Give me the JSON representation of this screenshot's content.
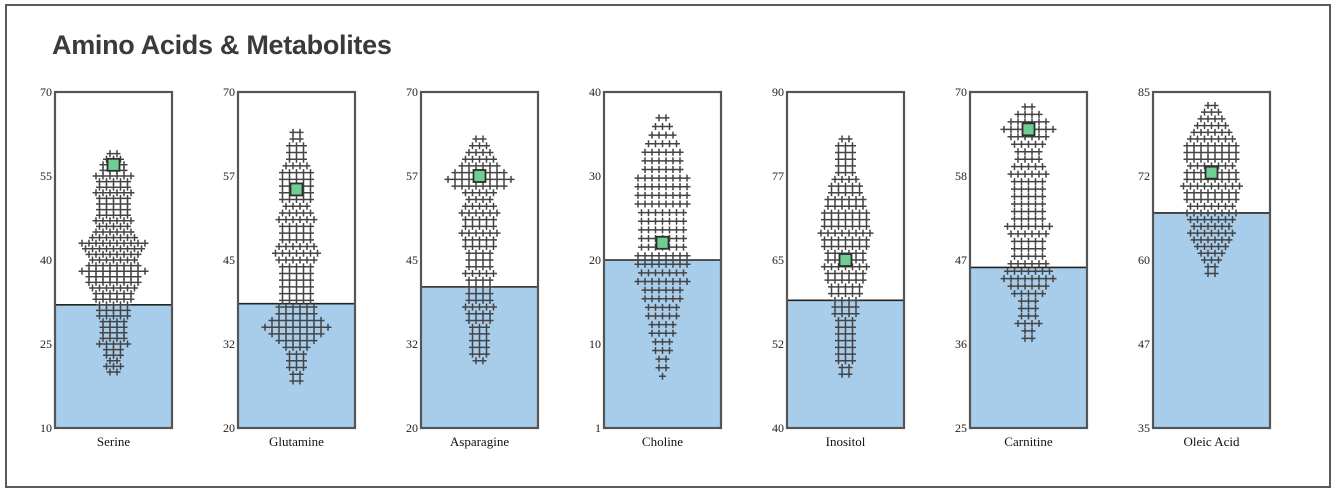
{
  "page": {
    "title": "Amino Acids & Metabolites"
  },
  "colors": {
    "fill": "#a8cdea",
    "frame": "#555555",
    "point": "#444444",
    "marker": "#6fcf93",
    "marker_border": "#2e2e2e",
    "title": "#3a3a3a"
  },
  "chart_data": [
    {
      "type": "scatter",
      "title": "Serine",
      "ylim": [
        10,
        70
      ],
      "yticks": [
        "10",
        "25",
        "40",
        "55",
        "70"
      ],
      "fill_level": 32,
      "marker": 57,
      "distribution": [
        [
          59,
          2
        ],
        [
          58,
          3
        ],
        [
          57,
          4
        ],
        [
          56,
          4
        ],
        [
          55,
          6
        ],
        [
          54,
          5
        ],
        [
          53,
          5
        ],
        [
          52,
          6
        ],
        [
          51,
          5
        ],
        [
          50,
          5
        ],
        [
          49,
          5
        ],
        [
          48,
          5
        ],
        [
          47,
          6
        ],
        [
          46,
          5
        ],
        [
          45,
          6
        ],
        [
          44,
          7
        ],
        [
          43,
          10
        ],
        [
          42,
          9
        ],
        [
          41,
          8
        ],
        [
          40,
          7
        ],
        [
          39,
          8
        ],
        [
          38,
          10
        ],
        [
          37,
          8
        ],
        [
          36,
          8
        ],
        [
          35,
          7
        ],
        [
          34,
          6
        ],
        [
          33,
          6
        ],
        [
          32,
          5
        ],
        [
          31,
          5
        ],
        [
          30,
          5
        ],
        [
          29,
          4
        ],
        [
          28,
          4
        ],
        [
          27,
          4
        ],
        [
          26,
          4
        ],
        [
          25,
          5
        ],
        [
          24,
          3
        ],
        [
          23,
          3
        ],
        [
          22,
          2
        ],
        [
          21,
          3
        ],
        [
          20,
          2
        ]
      ]
    },
    {
      "type": "scatter",
      "title": "Glutamine",
      "ylim": [
        20,
        70
      ],
      "yticks": [
        "20",
        "32",
        "45",
        "57",
        "70"
      ],
      "fill_level": 38.5,
      "marker": 55.5,
      "distribution": [
        [
          64,
          2
        ],
        [
          63,
          2
        ],
        [
          62,
          3
        ],
        [
          61,
          3
        ],
        [
          60,
          3
        ],
        [
          59,
          4
        ],
        [
          58,
          5
        ],
        [
          57,
          5
        ],
        [
          56,
          5
        ],
        [
          55,
          5
        ],
        [
          54,
          5
        ],
        [
          53,
          4
        ],
        [
          52,
          5
        ],
        [
          51,
          6
        ],
        [
          50,
          5
        ],
        [
          49,
          5
        ],
        [
          48,
          5
        ],
        [
          47,
          6
        ],
        [
          46,
          7
        ],
        [
          45,
          6
        ],
        [
          44,
          5
        ],
        [
          43,
          5
        ],
        [
          42,
          5
        ],
        [
          41,
          5
        ],
        [
          40,
          5
        ],
        [
          39,
          5
        ],
        [
          38,
          6
        ],
        [
          37,
          6
        ],
        [
          36,
          8
        ],
        [
          35,
          10
        ],
        [
          34,
          8
        ],
        [
          33,
          6
        ],
        [
          32,
          4
        ],
        [
          31,
          3
        ],
        [
          30,
          3
        ],
        [
          29,
          3
        ],
        [
          28,
          2
        ],
        [
          27,
          2
        ]
      ]
    },
    {
      "type": "scatter",
      "title": "Asparagine",
      "ylim": [
        20,
        70
      ],
      "yticks": [
        "20",
        "32",
        "45",
        "57",
        "70"
      ],
      "fill_level": 41,
      "marker": 57.5,
      "distribution": [
        [
          63,
          2
        ],
        [
          62,
          3
        ],
        [
          61,
          4
        ],
        [
          60,
          5
        ],
        [
          59,
          6
        ],
        [
          58,
          8
        ],
        [
          57,
          10
        ],
        [
          56,
          8
        ],
        [
          55,
          5
        ],
        [
          54,
          4
        ],
        [
          53,
          5
        ],
        [
          52,
          6
        ],
        [
          51,
          5
        ],
        [
          50,
          5
        ],
        [
          49,
          6
        ],
        [
          48,
          5
        ],
        [
          47,
          5
        ],
        [
          46,
          4
        ],
        [
          45,
          4
        ],
        [
          44,
          4
        ],
        [
          43,
          5
        ],
        [
          42,
          4
        ],
        [
          41,
          4
        ],
        [
          40,
          4
        ],
        [
          39,
          4
        ],
        [
          38,
          5
        ],
        [
          37,
          4
        ],
        [
          36,
          4
        ],
        [
          35,
          3
        ],
        [
          34,
          3
        ],
        [
          33,
          3
        ],
        [
          32,
          3
        ],
        [
          31,
          3
        ],
        [
          30,
          2
        ]
      ]
    },
    {
      "type": "scatter",
      "title": "Choline",
      "ylim": [
        1,
        40
      ],
      "yticks": [
        "1",
        "10",
        "20",
        "30",
        "40"
      ],
      "fill_level": 20.5,
      "marker": 22.5,
      "distribution": [
        [
          37,
          2
        ],
        [
          36,
          3
        ],
        [
          35,
          4
        ],
        [
          34,
          5
        ],
        [
          33,
          6
        ],
        [
          32,
          6
        ],
        [
          31,
          6
        ],
        [
          30,
          8
        ],
        [
          29,
          8
        ],
        [
          28,
          8
        ],
        [
          27,
          8
        ],
        [
          26,
          7
        ],
        [
          25,
          7
        ],
        [
          24,
          7
        ],
        [
          23,
          7
        ],
        [
          22,
          7
        ],
        [
          21,
          8
        ],
        [
          20,
          8
        ],
        [
          19,
          7
        ],
        [
          18,
          8
        ],
        [
          17,
          6
        ],
        [
          16,
          6
        ],
        [
          15,
          5
        ],
        [
          14,
          5
        ],
        [
          13,
          4
        ],
        [
          12,
          4
        ],
        [
          11,
          3
        ],
        [
          10,
          3
        ],
        [
          9,
          2
        ],
        [
          8,
          2
        ],
        [
          7,
          1
        ]
      ]
    },
    {
      "type": "scatter",
      "title": "Inositol",
      "ylim": [
        40,
        90
      ],
      "yticks": [
        "40",
        "52",
        "65",
        "77",
        "90"
      ],
      "fill_level": 59,
      "marker": 65,
      "distribution": [
        [
          83,
          2
        ],
        [
          82,
          3
        ],
        [
          81,
          3
        ],
        [
          80,
          3
        ],
        [
          79,
          3
        ],
        [
          78,
          3
        ],
        [
          77,
          4
        ],
        [
          76,
          5
        ],
        [
          75,
          5
        ],
        [
          74,
          6
        ],
        [
          73,
          6
        ],
        [
          72,
          7
        ],
        [
          71,
          7
        ],
        [
          70,
          7
        ],
        [
          69,
          8
        ],
        [
          68,
          7
        ],
        [
          67,
          7
        ],
        [
          66,
          6
        ],
        [
          65,
          6
        ],
        [
          64,
          7
        ],
        [
          63,
          6
        ],
        [
          62,
          6
        ],
        [
          61,
          5
        ],
        [
          60,
          5
        ],
        [
          59,
          4
        ],
        [
          58,
          4
        ],
        [
          57,
          4
        ],
        [
          56,
          3
        ],
        [
          55,
          3
        ],
        [
          54,
          3
        ],
        [
          53,
          3
        ],
        [
          52,
          3
        ],
        [
          51,
          3
        ],
        [
          50,
          3
        ],
        [
          49,
          2
        ],
        [
          48,
          2
        ]
      ]
    },
    {
      "type": "scatter",
      "title": "Carnitine",
      "ylim": [
        25,
        70
      ],
      "yticks": [
        "25",
        "36",
        "47",
        "58",
        "70"
      ],
      "fill_level": 46.5,
      "marker": 65,
      "distribution": [
        [
          68,
          2
        ],
        [
          67,
          4
        ],
        [
          66,
          6
        ],
        [
          65,
          8
        ],
        [
          64,
          6
        ],
        [
          63,
          5
        ],
        [
          62,
          4
        ],
        [
          61,
          4
        ],
        [
          60,
          5
        ],
        [
          59,
          6
        ],
        [
          58,
          5
        ],
        [
          57,
          5
        ],
        [
          56,
          5
        ],
        [
          55,
          5
        ],
        [
          54,
          5
        ],
        [
          53,
          5
        ],
        [
          52,
          7
        ],
        [
          51,
          6
        ],
        [
          50,
          5
        ],
        [
          49,
          5
        ],
        [
          48,
          5
        ],
        [
          47,
          6
        ],
        [
          46,
          7
        ],
        [
          45,
          8
        ],
        [
          44,
          6
        ],
        [
          43,
          5
        ],
        [
          42,
          3
        ],
        [
          41,
          3
        ],
        [
          40,
          3
        ],
        [
          39,
          4
        ],
        [
          38,
          2
        ],
        [
          37,
          2
        ]
      ]
    },
    {
      "type": "scatter",
      "title": "Oleic Acid",
      "ylim": [
        35,
        85
      ],
      "yticks": [
        "35",
        "47",
        "60",
        "72",
        "85"
      ],
      "fill_level": 67,
      "marker": 73,
      "distribution": [
        [
          83,
          2
        ],
        [
          82,
          3
        ],
        [
          81,
          4
        ],
        [
          80,
          5
        ],
        [
          79,
          6
        ],
        [
          78,
          7
        ],
        [
          77,
          8
        ],
        [
          76,
          8
        ],
        [
          75,
          8
        ],
        [
          74,
          7
        ],
        [
          73,
          8
        ],
        [
          72,
          8
        ],
        [
          71,
          9
        ],
        [
          70,
          8
        ],
        [
          69,
          8
        ],
        [
          68,
          7
        ],
        [
          67,
          8
        ],
        [
          66,
          7
        ],
        [
          65,
          6
        ],
        [
          64,
          7
        ],
        [
          63,
          6
        ],
        [
          62,
          5
        ],
        [
          61,
          4
        ],
        [
          60,
          3
        ],
        [
          59,
          2
        ],
        [
          58,
          2
        ]
      ]
    }
  ]
}
